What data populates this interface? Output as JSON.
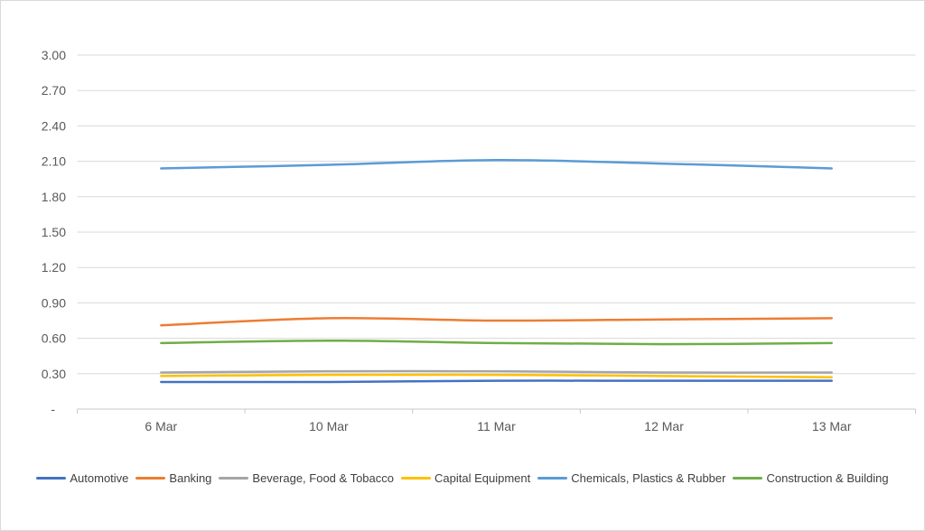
{
  "palette": {
    "background": "#FFFFFF",
    "canvas_border": "#D9D9D9",
    "gridline": "#D9D9D9",
    "axis_line": "#C9C9C9",
    "tick_label_color": "#595959",
    "legend_text_color": "#404040"
  },
  "chart_data": {
    "type": "line",
    "title": "",
    "categories": [
      "6 Mar",
      "10 Mar",
      "11 Mar",
      "12 Mar",
      "13 Mar"
    ],
    "series": [
      {
        "name": "Automotive",
        "color": "#4472C4",
        "values": [
          0.23,
          0.23,
          0.24,
          0.24,
          0.24
        ]
      },
      {
        "name": "Banking",
        "color": "#ED7D31",
        "values": [
          0.71,
          0.77,
          0.75,
          0.76,
          0.77
        ]
      },
      {
        "name": "Beverage, Food & Tobacco",
        "color": "#A5A5A5",
        "values": [
          0.31,
          0.32,
          0.32,
          0.31,
          0.31
        ]
      },
      {
        "name": "Capital Equipment",
        "color": "#FFC000",
        "values": [
          0.28,
          0.29,
          0.29,
          0.28,
          0.27
        ]
      },
      {
        "name": "Chemicals, Plastics & Rubber",
        "color": "#5B9BD5",
        "values": [
          2.04,
          2.07,
          2.11,
          2.08,
          2.04
        ]
      },
      {
        "name": "Construction & Building",
        "color": "#70AD47",
        "values": [
          0.56,
          0.58,
          0.56,
          0.55,
          0.56
        ]
      }
    ],
    "y_axis": {
      "min": 0,
      "max": 3.0,
      "step": 0.3,
      "tick_labels_top_to_bottom": [
        "3.00",
        "2.70",
        "2.40",
        "2.10",
        "1.80",
        "1.50",
        "1.20",
        "0.90",
        "0.60",
        "0.30",
        "-"
      ]
    },
    "x_axis": {
      "tick_marks_at_category_boundaries": true
    },
    "grid": true,
    "legend_position": "bottom",
    "smooth_lines": true
  }
}
